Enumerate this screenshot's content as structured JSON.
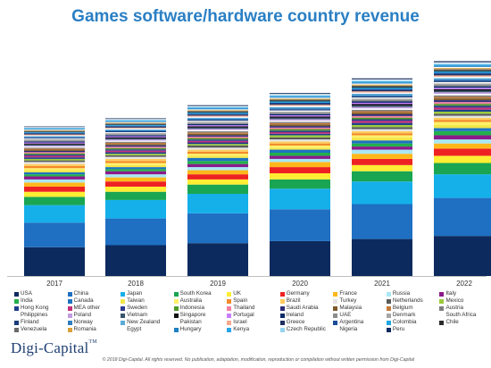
{
  "title": "Games software/hardware country revenue",
  "brand": {
    "name": "Digi-Capital",
    "tm": "TM"
  },
  "copyright": "© 2018 Digi-Capital. All rights reserved. No publication, adaptation, modification, reproduction or compilation without written permission from Digi-Capital",
  "chart_data": {
    "type": "bar",
    "stacked": true,
    "title": "Games software/hardware country revenue",
    "xlabel": "",
    "ylabel": "",
    "categories": [
      "2017",
      "2018",
      "2019",
      "2020",
      "2021",
      "2022"
    ],
    "legend_position": "bottom",
    "grid": false,
    "series": [
      {
        "name": "USA",
        "color": "#0d2a5e",
        "values": [
          28,
          30,
          32,
          34,
          36,
          39
        ]
      },
      {
        "name": "China",
        "color": "#1f6fc2",
        "values": [
          24,
          26,
          29,
          31,
          34,
          37
        ]
      },
      {
        "name": "Japan",
        "color": "#15b0ea",
        "values": [
          17,
          18,
          19,
          20,
          22,
          23
        ]
      },
      {
        "name": "South Korea",
        "color": "#1aa553",
        "values": [
          8,
          8,
          9,
          9,
          10,
          11
        ]
      },
      {
        "name": "UK",
        "color": "#ffee33",
        "values": [
          5,
          5,
          5,
          6,
          6,
          7
        ]
      },
      {
        "name": "Germany",
        "color": "#ee2222",
        "values": [
          5,
          5,
          5,
          6,
          6,
          7
        ]
      },
      {
        "name": "France",
        "color": "#ffb81c",
        "values": [
          4,
          4,
          4,
          5,
          5,
          5
        ]
      },
      {
        "name": "Russia",
        "color": "#a9e7f4",
        "values": [
          3,
          3,
          3,
          3,
          4,
          4
        ]
      },
      {
        "name": "Italy",
        "color": "#8b1a8b",
        "values": [
          3,
          3,
          3,
          3,
          3,
          4
        ]
      },
      {
        "name": "India",
        "color": "#23b04b",
        "values": [
          2,
          2,
          3,
          3,
          3,
          4
        ]
      },
      {
        "name": "Canada",
        "color": "#1e73be",
        "values": [
          2,
          2,
          3,
          3,
          3,
          3
        ]
      },
      {
        "name": "Taiwan",
        "color": "#f3e64a",
        "values": [
          2,
          2,
          2,
          2,
          3,
          3
        ]
      },
      {
        "name": "Australia",
        "color": "#fff16a",
        "values": [
          2,
          2,
          2,
          2,
          2,
          3
        ]
      },
      {
        "name": "Spain",
        "color": "#f28a2a",
        "values": [
          2,
          2,
          2,
          2,
          2,
          2
        ]
      },
      {
        "name": "Brazil",
        "color": "#ffcc5c",
        "values": [
          2,
          2,
          2,
          2,
          2,
          2
        ]
      },
      {
        "name": "Turkey",
        "color": "#e4e4e4",
        "values": [
          2,
          2,
          2,
          2,
          2,
          2
        ]
      },
      {
        "name": "Netherlands",
        "color": "#5a5a5a",
        "values": [
          1.5,
          1.5,
          2,
          2,
          2,
          2
        ]
      },
      {
        "name": "Mexico",
        "color": "#9ccc3c",
        "values": [
          1.5,
          1.5,
          1.5,
          2,
          2,
          2
        ]
      },
      {
        "name": "Hong Kong",
        "color": "#1c3f8a",
        "values": [
          1.5,
          1.5,
          1.5,
          1.5,
          2,
          2
        ]
      },
      {
        "name": "MEA other",
        "color": "#c2307a",
        "values": [
          1.5,
          1.5,
          1.5,
          1.5,
          2,
          2
        ]
      },
      {
        "name": "Sweden",
        "color": "#2d3a8c",
        "values": [
          1.2,
          1.3,
          1.4,
          1.5,
          1.6,
          1.8
        ]
      },
      {
        "name": "Indonesia",
        "color": "#4e9a2a",
        "values": [
          1.2,
          1.3,
          1.4,
          1.5,
          1.6,
          1.8
        ]
      },
      {
        "name": "Thailand",
        "color": "#f57fa0",
        "values": [
          1.2,
          1.3,
          1.4,
          1.5,
          1.6,
          1.8
        ]
      },
      {
        "name": "Saudi Arabia",
        "color": "#2b2b7a",
        "values": [
          1.2,
          1.3,
          1.4,
          1.5,
          1.6,
          1.8
        ]
      },
      {
        "name": "Malaysia",
        "color": "#7c5a2a",
        "values": [
          1.2,
          1.3,
          1.4,
          1.5,
          1.6,
          1.7
        ]
      },
      {
        "name": "Belgium",
        "color": "#c47a3a",
        "values": [
          1.0,
          1.1,
          1.2,
          1.3,
          1.4,
          1.5
        ]
      },
      {
        "name": "Austria",
        "color": "#7f7f7f",
        "values": [
          1.0,
          1.1,
          1.2,
          1.3,
          1.4,
          1.5
        ]
      },
      {
        "name": "Philippines",
        "color": "#ffffff",
        "values": [
          1.0,
          1.1,
          1.2,
          1.3,
          1.4,
          1.5
        ]
      },
      {
        "name": "Poland",
        "color": "#c19be0",
        "values": [
          1.0,
          1.1,
          1.2,
          1.3,
          1.4,
          1.5
        ]
      },
      {
        "name": "Vietnam",
        "color": "#36566c",
        "values": [
          1.0,
          1.1,
          1.2,
          1.3,
          1.4,
          1.5
        ]
      },
      {
        "name": "Singapore",
        "color": "#111111",
        "values": [
          1.0,
          1.1,
          1.2,
          1.3,
          1.4,
          1.5
        ]
      },
      {
        "name": "Portugal",
        "color": "#c77dff",
        "values": [
          1.0,
          1.0,
          1.1,
          1.2,
          1.3,
          1.4
        ]
      },
      {
        "name": "Ireland",
        "color": "#0a2a6a",
        "values": [
          1.0,
          1.0,
          1.1,
          1.2,
          1.3,
          1.4
        ]
      },
      {
        "name": "UAE",
        "color": "#8c8c8c",
        "values": [
          1.0,
          1.0,
          1.1,
          1.2,
          1.3,
          1.4
        ]
      },
      {
        "name": "Denmark",
        "color": "#a6a6a6",
        "values": [
          1.0,
          1.0,
          1.1,
          1.2,
          1.3,
          1.4
        ]
      },
      {
        "name": "South Africa",
        "color": "#ffffff",
        "values": [
          0.8,
          0.9,
          1.0,
          1.1,
          1.2,
          1.3
        ]
      },
      {
        "name": "Finland",
        "color": "#1b3b78",
        "values": [
          0.8,
          0.9,
          1.0,
          1.1,
          1.2,
          1.3
        ]
      },
      {
        "name": "Norway",
        "color": "#2f7fbf",
        "values": [
          0.8,
          0.9,
          1.0,
          1.1,
          1.2,
          1.3
        ]
      },
      {
        "name": "New Zealand",
        "color": "#5aaad6",
        "values": [
          0.8,
          0.9,
          1.0,
          1.1,
          1.2,
          1.3
        ]
      },
      {
        "name": "Pakistan",
        "color": "#ffffff",
        "values": [
          0.8,
          0.9,
          1.0,
          1.1,
          1.2,
          1.3
        ]
      },
      {
        "name": "Israel",
        "color": "#f6a88c",
        "values": [
          0.8,
          0.9,
          1.0,
          1.1,
          1.2,
          1.3
        ]
      },
      {
        "name": "Greece",
        "color": "#1f2f5f",
        "values": [
          0.8,
          0.9,
          1.0,
          1.1,
          1.2,
          1.3
        ]
      },
      {
        "name": "Argentina",
        "color": "#1a4c9a",
        "values": [
          0.8,
          0.9,
          1.0,
          1.1,
          1.2,
          1.3
        ]
      },
      {
        "name": "Colombia",
        "color": "#1ea7e0",
        "values": [
          0.8,
          0.9,
          1.0,
          1.1,
          1.2,
          1.3
        ]
      },
      {
        "name": "Chile",
        "color": "#2a2a2a",
        "values": [
          0.6,
          0.7,
          0.8,
          0.9,
          1.0,
          1.1
        ]
      },
      {
        "name": "Venezuela",
        "color": "#6a6a6a",
        "values": [
          0.6,
          0.7,
          0.8,
          0.9,
          1.0,
          1.1
        ]
      },
      {
        "name": "Romania",
        "color": "#d9a13a",
        "values": [
          0.6,
          0.7,
          0.8,
          0.9,
          1.0,
          1.1
        ]
      },
      {
        "name": "Egypt",
        "color": "#ffffff",
        "values": [
          0.6,
          0.7,
          0.8,
          0.9,
          1.0,
          1.1
        ]
      },
      {
        "name": "Hungary",
        "color": "#1f7fc0",
        "values": [
          0.6,
          0.7,
          0.8,
          0.9,
          1.0,
          1.1
        ]
      },
      {
        "name": "Kenya",
        "color": "#2aa5e5",
        "values": [
          0.6,
          0.7,
          0.8,
          0.9,
          1.0,
          1.1
        ]
      },
      {
        "name": "Czech Republic",
        "color": "#96d4ef",
        "values": [
          0.6,
          0.7,
          0.8,
          0.9,
          1.0,
          1.1
        ]
      },
      {
        "name": "Nigeria",
        "color": "#ffffff",
        "values": [
          0.6,
          0.7,
          0.8,
          0.9,
          1.0,
          1.1
        ]
      },
      {
        "name": "Peru",
        "color": "#0d2a5e",
        "values": [
          0.6,
          0.7,
          0.8,
          0.9,
          1.0,
          1.1
        ]
      }
    ]
  }
}
